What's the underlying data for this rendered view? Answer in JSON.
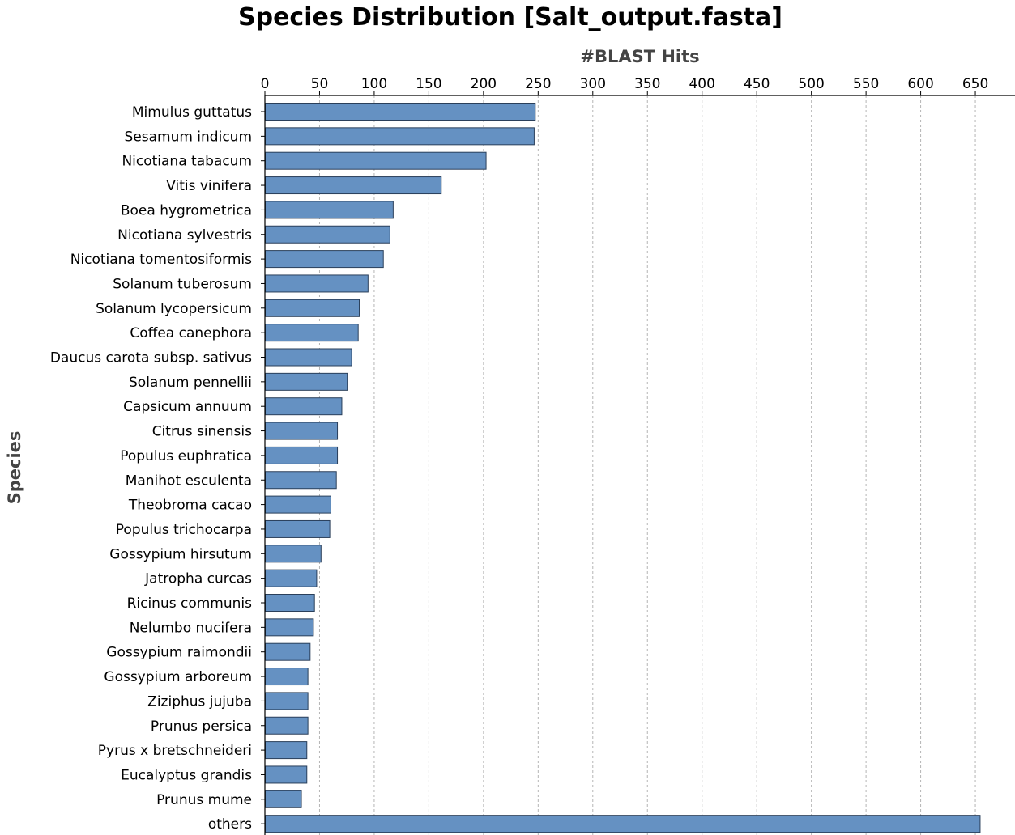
{
  "chart_data": {
    "type": "bar",
    "orientation": "horizontal",
    "title": "Species Distribution [Salt_output.fasta]",
    "xlabel": "#BLAST Hits",
    "ylabel": "Species",
    "xlim": [
      0,
      680
    ],
    "xticks": [
      0,
      50,
      100,
      150,
      200,
      250,
      300,
      350,
      400,
      450,
      500,
      550,
      600,
      650
    ],
    "grid": true,
    "bar_color": "#6591c2",
    "bar_edge_color": "#2a3f5a",
    "categories": [
      "Mimulus guttatus",
      "Sesamum indicum",
      "Nicotiana tabacum",
      "Vitis vinifera",
      "Boea hygrometrica",
      "Nicotiana sylvestris",
      "Nicotiana tomentosiformis",
      "Solanum tuberosum",
      "Solanum lycopersicum",
      "Coffea canephora",
      "Daucus carota subsp. sativus",
      "Solanum pennellii",
      "Capsicum annuum",
      "Citrus sinensis",
      "Populus euphratica",
      "Manihot esculenta",
      "Theobroma cacao",
      "Populus trichocarpa",
      "Gossypium hirsutum",
      "Jatropha curcas",
      "Ricinus communis",
      "Nelumbo nucifera",
      "Gossypium raimondii",
      "Gossypium arboreum",
      "Ziziphus jujuba",
      "Prunus persica",
      "Pyrus x bretschneideri",
      "Eucalyptus grandis",
      "Prunus mume",
      "others"
    ],
    "values": [
      247,
      246,
      202,
      161,
      117,
      114,
      108,
      94,
      86,
      85,
      79,
      75,
      70,
      66,
      66,
      65,
      60,
      59,
      51,
      47,
      45,
      44,
      41,
      39,
      39,
      39,
      38,
      38,
      33,
      654
    ]
  }
}
